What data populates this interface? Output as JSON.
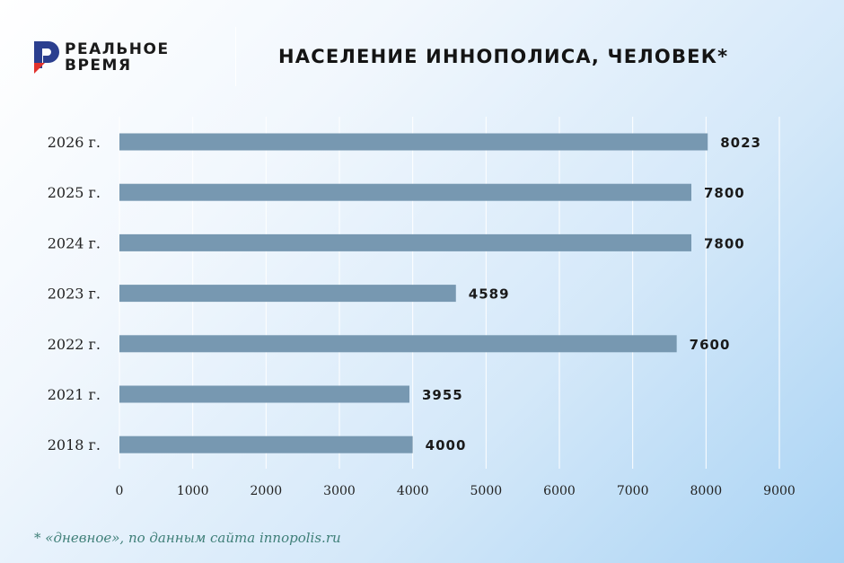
{
  "header": {
    "logo_line1": "РЕАЛЬНОЕ",
    "logo_line2": "ВРЕМЯ",
    "title": "НАСЕЛЕНИЕ ИННОПОЛИСА, ЧЕЛОВЕК*"
  },
  "footnote": "* «дневное», по данным сайта innopolis.ru",
  "colors": {
    "bar": "#7798b1",
    "logo_blue": "#2b3f8f",
    "logo_red": "#e0322d",
    "footnote": "#3f7f78"
  },
  "icons": {
    "logo": "realnoe-vremya-logo-icon"
  },
  "chart_data": {
    "type": "bar",
    "orientation": "horizontal",
    "categories": [
      "2026 г.",
      "2025 г.",
      "2024 г.",
      "2023 г.",
      "2022 г.",
      "2021 г.",
      "2018 г."
    ],
    "values": [
      8023,
      7800,
      7800,
      4589,
      7600,
      3955,
      4000
    ],
    "value_labels": [
      "8023",
      "7800",
      "7800",
      "4589",
      "7600",
      "3955",
      "4000"
    ],
    "xlim": [
      0,
      9000
    ],
    "x_ticks": [
      0,
      1000,
      2000,
      3000,
      4000,
      5000,
      6000,
      7000,
      8000,
      9000
    ],
    "x_tick_labels": [
      "0",
      "1000",
      "2000",
      "3000",
      "4000",
      "5000",
      "6000",
      "7000",
      "8000",
      "9000"
    ],
    "title": "НАСЕЛЕНИЕ ИННОПОЛИСА, ЧЕЛОВЕК*",
    "xlabel": "",
    "ylabel": "",
    "grid": true
  }
}
